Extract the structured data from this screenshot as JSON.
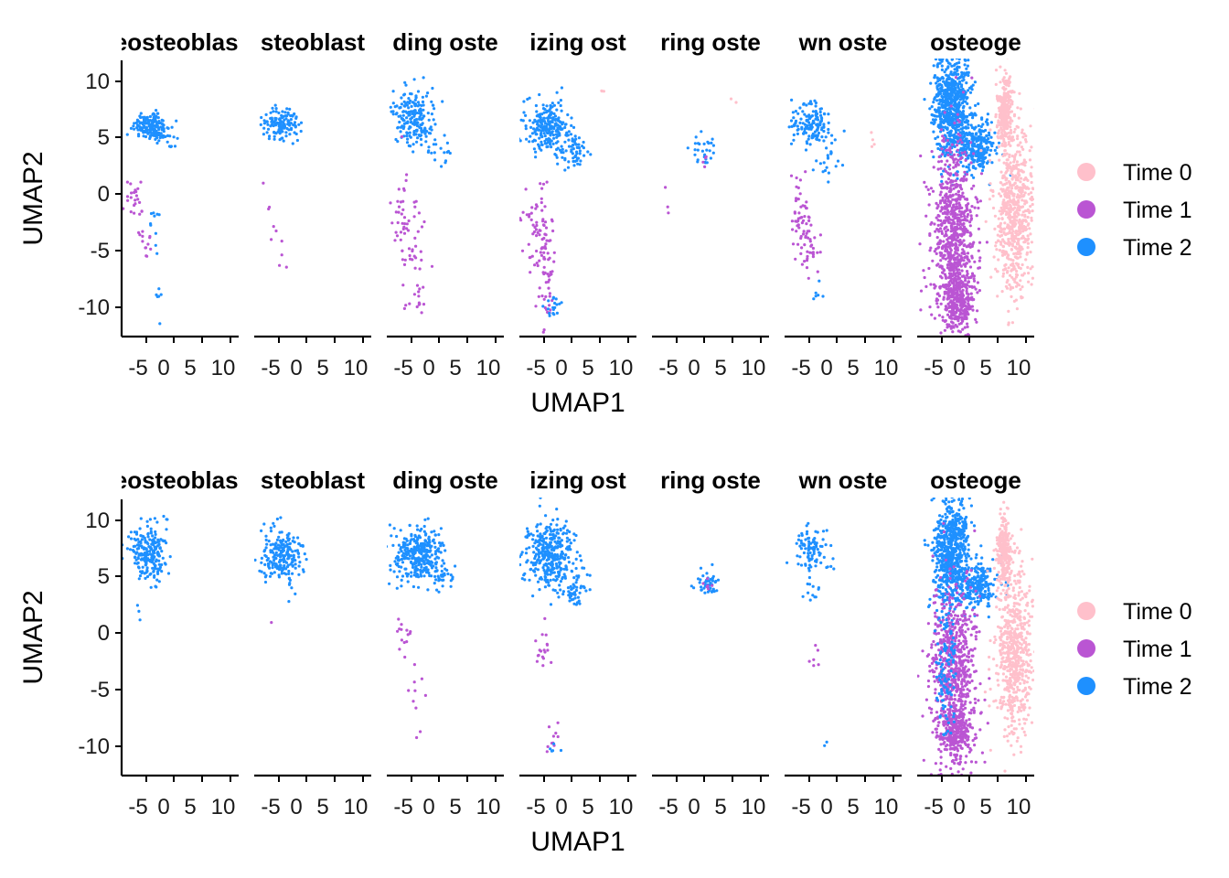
{
  "chart_data": [
    {
      "type": "scatter",
      "xlabel": "UMAP1",
      "ylabel": "UMAP2",
      "facets": [
        "eosteoblast",
        "steoblast",
        "ding oste",
        "izing ost",
        "ring oste",
        "wn oste",
        "osteoge"
      ],
      "x_ticks": [
        "-5",
        "0",
        "5",
        "10"
      ],
      "y_ticks": [
        "10",
        "5",
        "0",
        "-5",
        "-10"
      ],
      "ylim": [
        -12.7,
        11.8
      ],
      "xlim": [
        -13,
        14
      ],
      "legend": {
        "placement": "right",
        "entries": [
          {
            "label": "Time 0",
            "color": "#FFC0CB"
          },
          {
            "label": "Time 1",
            "color": "#BA55D3"
          },
          {
            "label": "Time 2",
            "color": "#1E90FF"
          }
        ]
      }
    },
    {
      "type": "scatter",
      "xlabel": "UMAP1",
      "ylabel": "UMAP2",
      "facets": [
        "eosteoblast",
        "steoblast",
        "ding oste",
        "izing ost",
        "ring oste",
        "wn oste",
        "osteoge"
      ],
      "x_ticks": [
        "-5",
        "0",
        "5",
        "10"
      ],
      "y_ticks": [
        "10",
        "5",
        "0",
        "-5",
        "-10"
      ],
      "ylim": [
        -12.7,
        11.8
      ],
      "xlim": [
        -13,
        14
      ],
      "legend": {
        "placement": "right",
        "entries": [
          {
            "label": "Time 0",
            "color": "#FFC0CB"
          },
          {
            "label": "Time 1",
            "color": "#BA55D3"
          },
          {
            "label": "Time 2",
            "color": "#1E90FF"
          }
        ]
      }
    }
  ]
}
